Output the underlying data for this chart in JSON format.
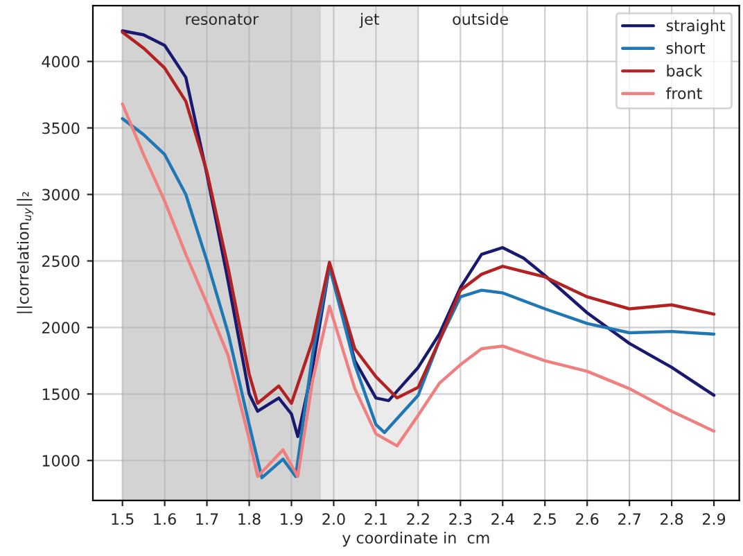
{
  "chart_data": {
    "type": "line",
    "xlabel": "y coordinate in  cm",
    "ylabel": "||correlation$_{uy}$||₂",
    "xlim": [
      1.43,
      2.96
    ],
    "ylim": [
      700,
      4420
    ],
    "xticks": [
      1.5,
      1.6,
      1.7,
      1.8,
      1.9,
      {
        "value": 2.0,
        "label": "2.0"
      },
      2.1,
      2.2,
      2.3,
      2.4,
      2.5,
      2.6,
      2.7,
      2.8,
      2.9
    ],
    "yticks": [
      1000,
      1500,
      2000,
      2500,
      3000,
      3500,
      4000
    ],
    "grid": true,
    "legend": "top right",
    "bands": [
      {
        "axis": "x",
        "from": 1.5,
        "to": 1.97,
        "label": "resonator",
        "color": "#d3d3d3"
      },
      {
        "axis": "x",
        "from": 1.97,
        "to": 2.2,
        "label": "jet",
        "color": "#ebebeb"
      }
    ],
    "annotations": [
      "outside"
    ],
    "series": [
      {
        "name": "straight",
        "color": "#191970",
        "x": [
          1.5,
          1.55,
          1.6,
          1.65,
          1.7,
          1.75,
          1.8,
          1.82,
          1.87,
          1.9,
          1.915,
          1.95,
          1.99,
          2.05,
          2.1,
          2.13,
          2.2,
          2.25,
          2.3,
          2.35,
          2.4,
          2.45,
          2.5,
          2.6,
          2.7,
          2.8,
          2.9
        ],
        "values": [
          4230,
          4200,
          4120,
          3880,
          3150,
          2350,
          1500,
          1370,
          1470,
          1350,
          1180,
          1700,
          2460,
          1750,
          1470,
          1450,
          1700,
          1950,
          2300,
          2550,
          2600,
          2520,
          2390,
          2110,
          1880,
          1700,
          1490
        ]
      },
      {
        "name": "short",
        "color": "#1f77b4",
        "x": [
          1.5,
          1.55,
          1.6,
          1.65,
          1.7,
          1.75,
          1.8,
          1.83,
          1.88,
          1.91,
          1.95,
          1.99,
          2.05,
          2.1,
          2.12,
          2.2,
          2.25,
          2.3,
          2.35,
          2.4,
          2.5,
          2.6,
          2.7,
          2.8,
          2.9
        ],
        "values": [
          3570,
          3450,
          3300,
          3000,
          2500,
          1960,
          1270,
          870,
          1010,
          880,
          1800,
          2460,
          1720,
          1270,
          1210,
          1490,
          1900,
          2230,
          2280,
          2260,
          2140,
          2030,
          1960,
          1970,
          1950
        ]
      },
      {
        "name": "back",
        "color": "#b22222",
        "x": [
          1.5,
          1.55,
          1.6,
          1.65,
          1.7,
          1.75,
          1.8,
          1.82,
          1.87,
          1.9,
          1.95,
          1.99,
          2.05,
          2.1,
          2.15,
          2.2,
          2.25,
          2.3,
          2.35,
          2.4,
          2.5,
          2.6,
          2.7,
          2.8,
          2.9
        ],
        "values": [
          4220,
          4100,
          3950,
          3700,
          3170,
          2450,
          1650,
          1430,
          1560,
          1430,
          1900,
          2490,
          1840,
          1630,
          1470,
          1550,
          1900,
          2280,
          2400,
          2460,
          2380,
          2230,
          2140,
          2170,
          2100
        ]
      },
      {
        "name": "front",
        "color": "#f08080",
        "x": [
          1.5,
          1.55,
          1.6,
          1.65,
          1.7,
          1.75,
          1.8,
          1.82,
          1.88,
          1.915,
          1.95,
          1.99,
          2.05,
          2.1,
          2.15,
          2.2,
          2.25,
          2.3,
          2.35,
          2.4,
          2.5,
          2.6,
          2.7,
          2.8,
          2.9
        ],
        "values": [
          3680,
          3300,
          2950,
          2550,
          2180,
          1790,
          1160,
          880,
          1080,
          880,
          1600,
          2160,
          1540,
          1200,
          1110,
          1340,
          1580,
          1720,
          1840,
          1860,
          1750,
          1670,
          1540,
          1370,
          1220
        ]
      }
    ]
  }
}
